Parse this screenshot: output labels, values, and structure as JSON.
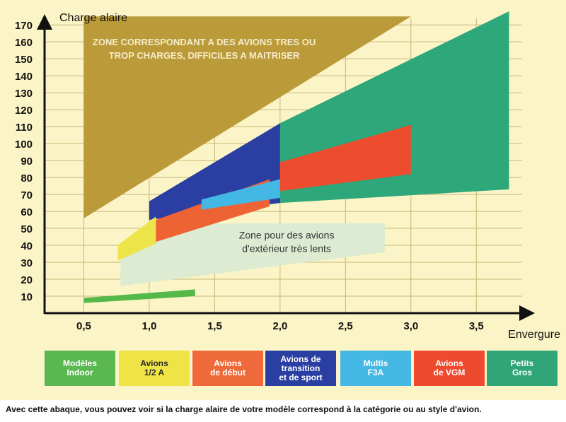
{
  "chart_data": {
    "type": "area",
    "ylabel": "Charge alaire",
    "xlabel": "Envergure",
    "xlim": [
      0.2,
      3.85
    ],
    "ylim": [
      0,
      178
    ],
    "x_ticks": [
      {
        "value": 0.5,
        "label": "0,5"
      },
      {
        "value": 1.0,
        "label": "1,0"
      },
      {
        "value": 1.5,
        "label": "1,5"
      },
      {
        "value": 2.0,
        "label": "2,0"
      },
      {
        "value": 2.5,
        "label": "2,5"
      },
      {
        "value": 3.0,
        "label": "3,0"
      },
      {
        "value": 3.5,
        "label": "3,5"
      }
    ],
    "y_ticks": [
      10,
      20,
      30,
      40,
      50,
      60,
      70,
      80,
      90,
      100,
      110,
      120,
      130,
      140,
      150,
      160,
      170
    ],
    "grid": true,
    "zones": [
      {
        "id": "too-heavy",
        "color": "#bb9a3a",
        "text": [
          "ZONE CORRESPONDANT A DES AVIONS TRES OU",
          "TROP CHARGES, DIFFICILES A MAITRISER"
        ],
        "text_color": "#f5eccb",
        "text_at": [
          1.42,
          158
        ],
        "polygon": [
          [
            0.5,
            56
          ],
          [
            0.5,
            175
          ],
          [
            3.0,
            175
          ]
        ]
      },
      {
        "id": "slow-outdoor",
        "color": "#dcebd1",
        "text": [
          "Zone pour des avions",
          "d'extérieur très lents"
        ],
        "text_color": "#333333",
        "text_at": [
          2.05,
          44
        ],
        "polygon": [
          [
            0.78,
            16
          ],
          [
            0.78,
            36
          ],
          [
            1.38,
            53
          ],
          [
            2.8,
            53
          ],
          [
            2.8,
            36
          ]
        ]
      },
      {
        "id": "petits-gros",
        "color": "#2ea77a",
        "polygon": [
          [
            2.0,
            65
          ],
          [
            2.0,
            112
          ],
          [
            3.75,
            178
          ],
          [
            3.75,
            73
          ]
        ]
      },
      {
        "id": "transition-sport",
        "color": "#2b3fa3",
        "polygon": [
          [
            1.0,
            55
          ],
          [
            1.0,
            66
          ],
          [
            2.0,
            112
          ],
          [
            2.0,
            65
          ]
        ]
      },
      {
        "id": "debut",
        "color": "#ee6334",
        "polygon": [
          [
            1.05,
            42
          ],
          [
            1.05,
            55
          ],
          [
            1.92,
            79
          ],
          [
            1.92,
            63
          ]
        ]
      },
      {
        "id": "f3a",
        "color": "#44b8e4",
        "polygon": [
          [
            1.4,
            61
          ],
          [
            1.4,
            67
          ],
          [
            2.0,
            79
          ],
          [
            2.0,
            68
          ]
        ]
      },
      {
        "id": "vgm",
        "color": "#ee4c2e",
        "polygon": [
          [
            2.0,
            72
          ],
          [
            2.0,
            89
          ],
          [
            3.0,
            111
          ],
          [
            3.0,
            82
          ]
        ]
      },
      {
        "id": "half-a",
        "color": "#ece449",
        "polygon": [
          [
            0.76,
            31
          ],
          [
            0.76,
            40
          ],
          [
            1.05,
            57
          ],
          [
            1.05,
            41
          ]
        ]
      },
      {
        "id": "indoor",
        "color": "#54b948",
        "polygon": [
          [
            0.5,
            6
          ],
          [
            0.5,
            9
          ],
          [
            1.35,
            14
          ],
          [
            1.35,
            10
          ]
        ]
      }
    ],
    "legend": [
      {
        "label": "Modèles\nIndoor",
        "color": "#5ab850"
      },
      {
        "label": "Avions\n1/2 A",
        "color": "#efe446",
        "text_color": "#2a2a2a"
      },
      {
        "label": "Avions\nde début",
        "color": "#ef6a3a"
      },
      {
        "label": "Avions de\ntransition\net de sport",
        "color": "#2b3fa3"
      },
      {
        "label": "Multis\nF3A",
        "color": "#46b8e6"
      },
      {
        "label": "Avions\nde VGM",
        "color": "#ee4a2d"
      },
      {
        "label": "Petits\nGros",
        "color": "#2fa578"
      }
    ]
  },
  "caption": "Avec cette abaque, vous pouvez voir si la charge alaire de votre modèle correspond à la catégorie ou au style d'avion."
}
